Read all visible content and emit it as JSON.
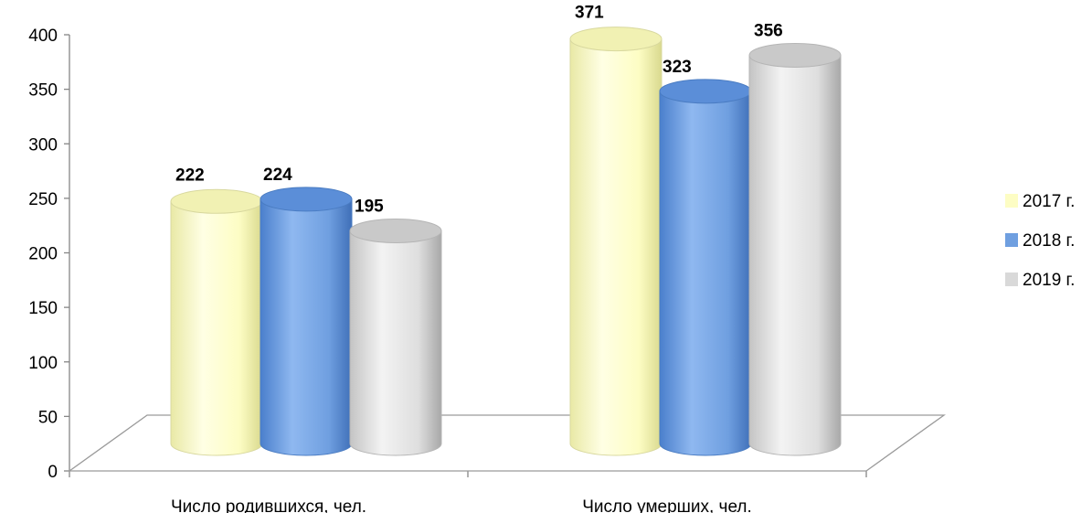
{
  "chart_data": {
    "type": "bar",
    "style": "3d-cylinder",
    "categories": [
      "Число родившихся, чел.",
      "Число умерших, чел."
    ],
    "series": [
      {
        "name": "2017 г.",
        "values": [
          222,
          371
        ],
        "color": "#fdfdc4"
      },
      {
        "name": "2018 г.",
        "values": [
          224,
          323
        ],
        "color": "#6f9fe0"
      },
      {
        "name": "2019 г.",
        "values": [
          195,
          356
        ],
        "color": "#d9d9d9"
      }
    ],
    "yticks": [
      0,
      50,
      100,
      150,
      200,
      250,
      300,
      350,
      400
    ],
    "ylim": [
      0,
      400
    ],
    "legend_position": "right",
    "data_labels": true
  }
}
